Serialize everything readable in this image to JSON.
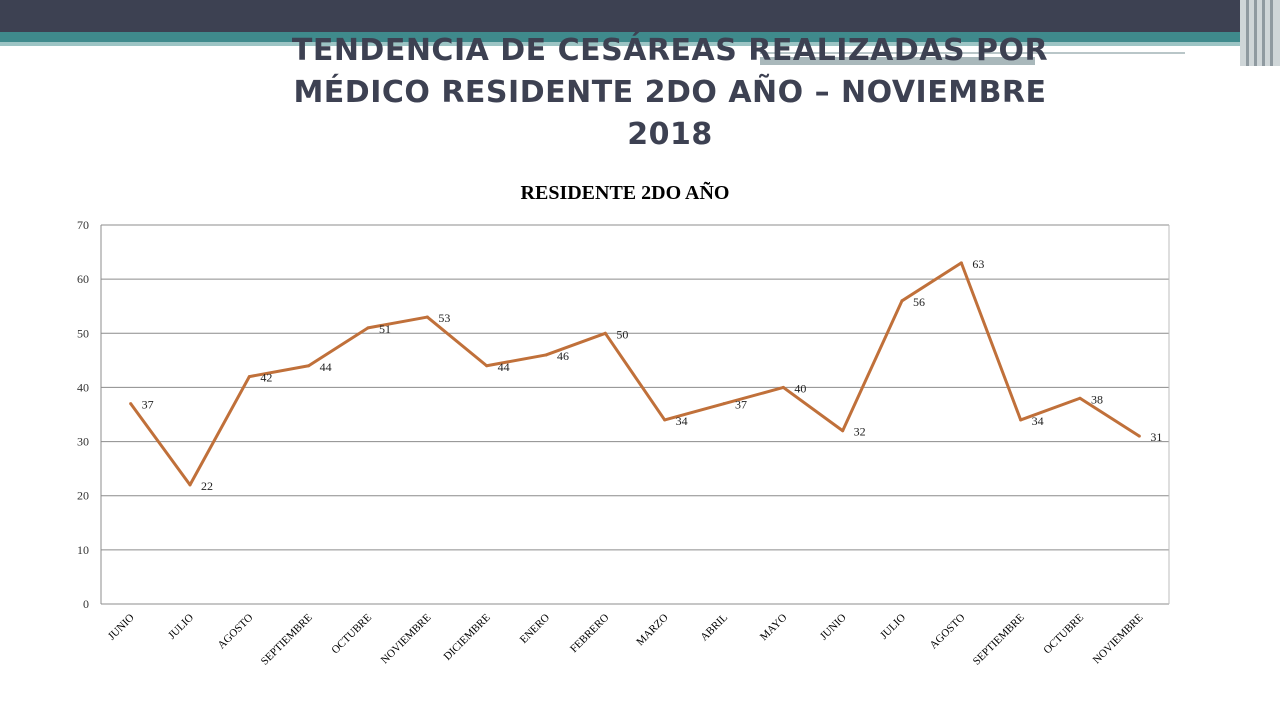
{
  "slide": {
    "title": "TENDENCIA DE CESÁREAS REALIZADAS POR MÉDICO RESIDENTE 2DO AÑO –  NOVIEMBRE 2018"
  },
  "colors": {
    "line": "#c0703a",
    "grid": "#8c8c8c",
    "header": "#3d4152",
    "accent": "#3f8a8c"
  },
  "chart_data": {
    "type": "line",
    "title": "RESIDENTE 2DO AÑO",
    "xlabel": "",
    "ylabel": "",
    "ylim": [
      0,
      70
    ],
    "yticks": [
      0,
      10,
      20,
      30,
      40,
      50,
      60,
      70
    ],
    "grid": true,
    "legend": "none",
    "categories": [
      "JUNIO",
      "JULIO",
      "AGOSTO",
      "SEPTIEMBRE",
      "OCTUBRE",
      "NOVIEMBRE",
      "DICIEMBRE",
      "ENERO",
      "FEBRERO",
      "MARZO",
      "ABRIL",
      "MAYO",
      "JUNIO",
      "JULIO",
      "AGOSTO",
      "SEPTIEMBRE",
      "OCTUBRE",
      "NOVIEMBRE"
    ],
    "series": [
      {
        "values": [
          37,
          22,
          42,
          44,
          51,
          53,
          44,
          46,
          50,
          34,
          37,
          40,
          32,
          56,
          63,
          34,
          38,
          31
        ]
      }
    ]
  }
}
